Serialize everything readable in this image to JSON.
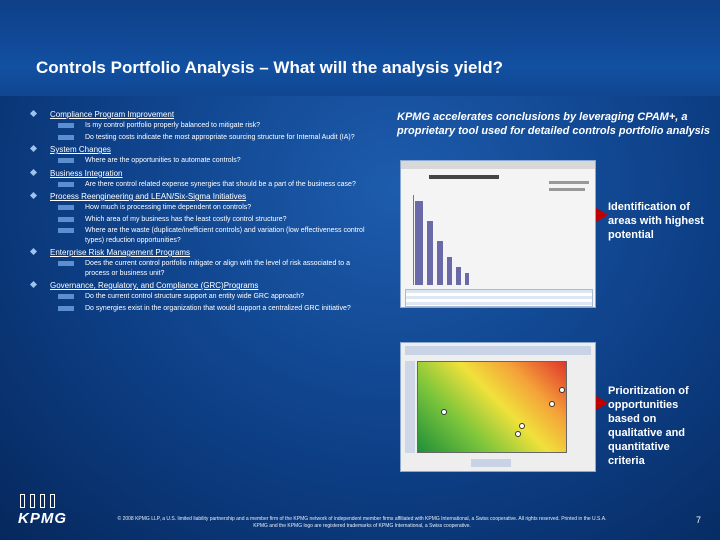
{
  "title": "Controls Portfolio Analysis – What will the analysis yield?",
  "left": {
    "items": [
      {
        "label": "Compliance Program Improvement",
        "subs": [
          "Is my control portfolio properly balanced to mitigate risk?",
          "Do testing costs indicate the most appropriate sourcing structure for Internal Audit (IA)?"
        ]
      },
      {
        "label": "System Changes",
        "subs": [
          "Where are the opportunities to automate controls?"
        ]
      },
      {
        "label": "Business Integration",
        "subs": [
          "Are there control related expense synergies that should be a part of the business case?"
        ]
      },
      {
        "label": "Process Reengineering and LEAN/Six-Sigma Initiatives",
        "subs": [
          "How much is processing time dependent on controls?",
          "Which area of my business has the least costly control structure?",
          "Where are the waste (duplicate/inefficient controls) and variation (low effectiveness control types) reduction opportunities?"
        ]
      },
      {
        "label": "Enterprise Risk Management Programs",
        "subs": [
          "Does the current control portfolio mitigate or align with the level of risk associated to a process or business unit?"
        ]
      },
      {
        "label": "Governance, Regulatory, and Compliance (GRC)Programs",
        "subs": [
          "Do the current control structure support an entity wide GRC approach?",
          "Do synergies exist in the organization that would support a centralized GRC initiative?"
        ]
      }
    ]
  },
  "right": {
    "heading": "KPMG accelerates conclusions by leveraging CPAM+, a proprietary tool used for detailed controls portfolio analysis",
    "callout1": "Identification of areas with highest potential",
    "callout2": "Prioritization of opportunities based on qualitative and quantitative criteria"
  },
  "footer": {
    "logo": "KPMG",
    "copyright": "© 2008 KPMG LLP, a U.S. limited liability partnership and a member firm of the KPMG network of independent member firms affiliated with KPMG International, a Swiss cooperative. All rights reserved. Printed in the U.S.A. KPMG and the KPMG logo are registered trademarks of KPMG International, a Swiss cooperative.",
    "page_number": "7"
  },
  "colors": {
    "background": "#0d3f86",
    "arrow": "#c00000",
    "bullet": "#9ec3ee",
    "dash": "#5b8fd2"
  }
}
